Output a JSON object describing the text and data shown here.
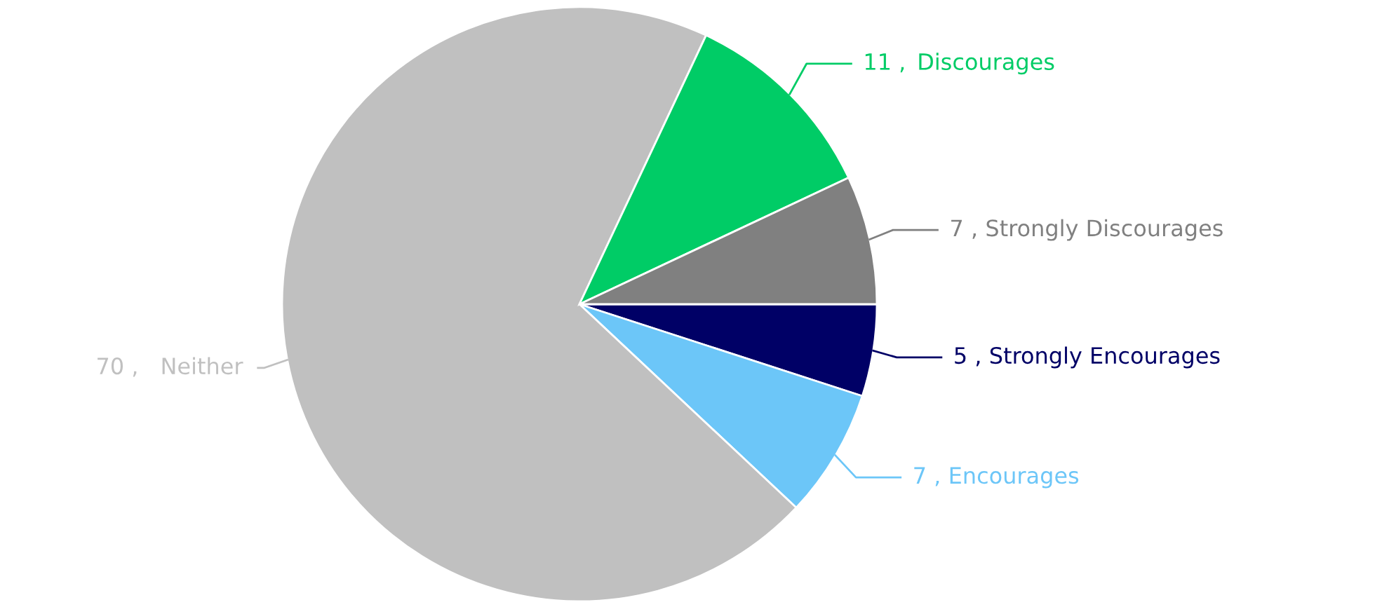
{
  "chart_data": {
    "type": "pie",
    "categories": [
      "Strongly Encourages",
      "Encourages",
      "Neither",
      "Discourages",
      "Strongly Discourages"
    ],
    "values": [
      5,
      7,
      70,
      11,
      7
    ],
    "colors": [
      "#000066",
      "#6cc6f8",
      "#c0c0c0",
      "#00cc66",
      "#808080"
    ],
    "value_labels": [
      "5 ,",
      "7 ,",
      "70 ,",
      "11 ,",
      "7 ,"
    ]
  }
}
